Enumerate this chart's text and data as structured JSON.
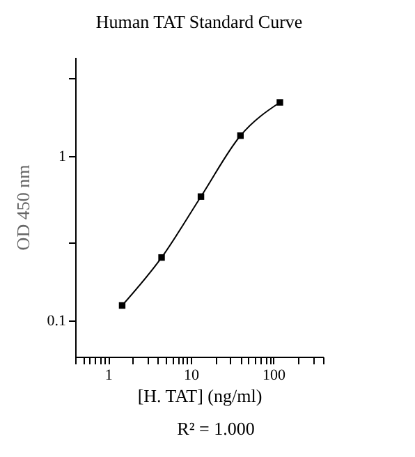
{
  "chart_data": {
    "type": "line",
    "title": "Human TAT Standard Curve",
    "xlabel": "[H. TAT] (ng/ml)",
    "ylabel": "OD 450 nm",
    "annotations": [
      "R² = 1.000"
    ],
    "x": [
      1.48,
      4.44,
      13.3,
      40,
      120
    ],
    "series": [
      {
        "color": "#000000",
        "values": [
          0.123,
          0.241,
          0.566,
          1.33,
          2.12
        ]
      }
    ],
    "log": "xy",
    "xlim": [
      0.4,
      400
    ],
    "ylim": [
      0.06,
      4
    ],
    "xticks": [
      {
        "value": 0.4,
        "label": null
      },
      {
        "value": 0.5,
        "label": null
      },
      {
        "value": 0.6,
        "label": null
      },
      {
        "value": 0.7,
        "label": null
      },
      {
        "value": 0.8,
        "label": null
      },
      {
        "value": 0.9,
        "label": null
      },
      1,
      {
        "value": 2,
        "label": null
      },
      {
        "value": 3,
        "label": null
      },
      {
        "value": 4,
        "label": null
      },
      {
        "value": 5,
        "label": null
      },
      {
        "value": 6,
        "label": null
      },
      {
        "value": 7,
        "label": null
      },
      {
        "value": 8,
        "label": null
      },
      {
        "value": 9,
        "label": null
      },
      10,
      {
        "value": 20,
        "label": null
      },
      {
        "value": 30,
        "label": null
      },
      {
        "value": 40,
        "label": null
      },
      {
        "value": 50,
        "label": null
      },
      {
        "value": 60,
        "label": null
      },
      {
        "value": 70,
        "label": null
      },
      {
        "value": 80,
        "label": null
      },
      {
        "value": 90,
        "label": null
      },
      100,
      {
        "value": 200,
        "label": null
      },
      {
        "value": 300,
        "label": null
      },
      {
        "value": 400,
        "label": null
      }
    ],
    "yticks": [
      0.1,
      {
        "value": 0.3,
        "label": null
      },
      1,
      {
        "value": 3,
        "label": null
      }
    ],
    "marker": "square",
    "line_style": "solid"
  }
}
